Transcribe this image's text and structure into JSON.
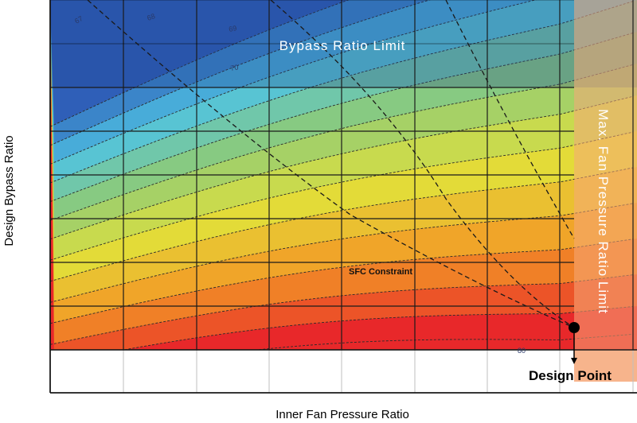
{
  "chart_data": {
    "type": "contour",
    "title": "",
    "xlabel": "Inner Fan Pressure Ratio",
    "ylabel": "Design Bypass Ratio",
    "grid": true,
    "contour_labels": [
      "67",
      "68",
      "69",
      "70",
      "80"
    ],
    "regions": {
      "bypass_limit": "Bypass Ratio Limit",
      "fan_pressure_limit": "Max. Fan Pressure Ratio Limit"
    },
    "constraint_label": "SFC Constraint",
    "design_point_label": "Design Point",
    "colors": {
      "blue": "#2f5fb8",
      "cyan": "#4fc3e3",
      "green": "#8ccb7a",
      "yellow": "#e2e03a",
      "orange": "#f39a26",
      "red": "#e8282a",
      "limit_overlay": "#f5b58c"
    }
  }
}
